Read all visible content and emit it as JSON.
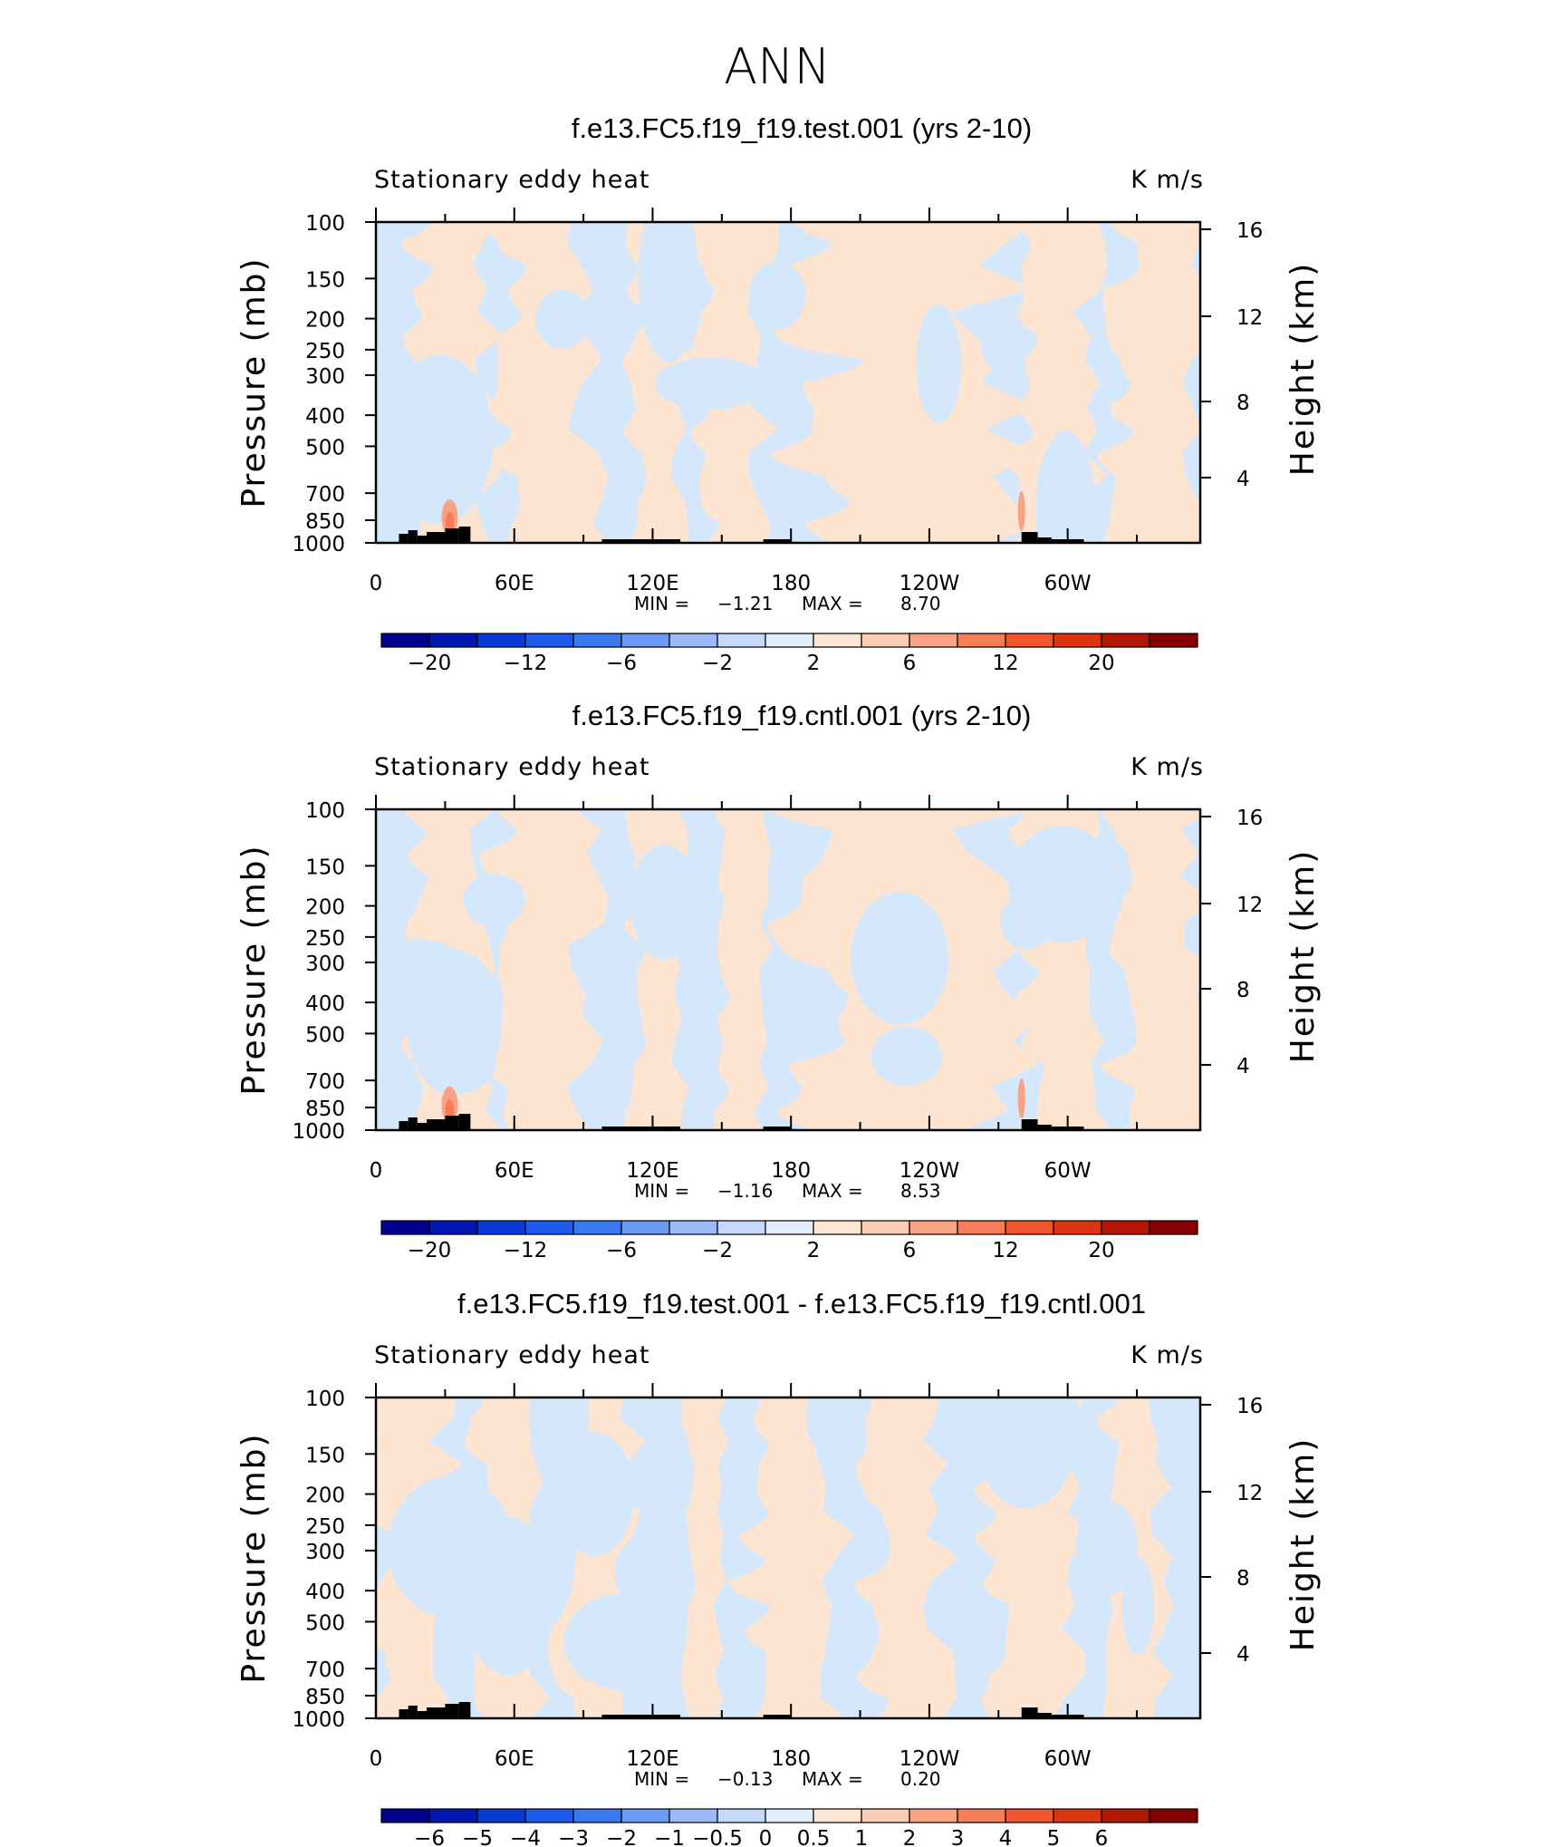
{
  "figure_title": "ANN",
  "colors": {
    "warm_fill": "#fde5d2",
    "cool_fill": "#d4e7fb",
    "topography": "#000000",
    "frame": "#000000"
  },
  "chart_data": [
    {
      "type": "heatmap",
      "title": "f.e13.FC5.f19_f19.test.001 (yrs 2-10)",
      "left_label": "Stationary eddy heat",
      "right_label": "K m/s",
      "ylabel": "Pressure (mb)",
      "y2label": "Height (km)",
      "yticks": [
        100,
        150,
        200,
        250,
        300,
        400,
        500,
        700,
        850,
        1000
      ],
      "y2ticks": [
        16,
        12,
        8,
        4
      ],
      "xticks": [
        {
          "lon": 0,
          "label": "0"
        },
        {
          "lon": 60,
          "label": "60E"
        },
        {
          "lon": 120,
          "label": "120E"
        },
        {
          "lon": 180,
          "label": "180"
        },
        {
          "lon": 240,
          "label": "120W"
        },
        {
          "lon": 300,
          "label": "60W"
        }
      ],
      "xlim": [
        0,
        357.5
      ],
      "ylim": [
        1000,
        100
      ],
      "min_label": "MIN =",
      "min_value": "−1.21",
      "max_label": "MAX =",
      "max_value": "8.70",
      "colorbar": {
        "colors": [
          "#00008c",
          "#0018b0",
          "#0a3ad6",
          "#1c5af0",
          "#3a78f2",
          "#6a9af5",
          "#9abaf8",
          "#c6d9fb",
          "#e3eefd",
          "#fde6d3",
          "#fbcdb2",
          "#f8a484",
          "#f67d55",
          "#f2552c",
          "#dd3511",
          "#b21705",
          "#850000"
        ],
        "labels": [
          "−20",
          "−12",
          "−6",
          "−2",
          "2",
          "6",
          "12",
          "20"
        ],
        "label_positions": [
          1,
          3,
          5,
          7,
          9,
          11,
          13,
          15
        ]
      },
      "field": {
        "description_levels": "sign of stationary eddy heat flux",
        "warm_bands_lon_deg": [
          [
            18,
            48
          ],
          [
            55,
            92
          ],
          [
            112,
            132
          ],
          [
            142,
            168
          ],
          [
            190,
            270
          ],
          [
            280,
            310
          ],
          [
            322,
            357
          ]
        ]
      }
    },
    {
      "type": "heatmap",
      "title": "f.e13.FC5.f19_f19.cntl.001 (yrs 2-10)",
      "left_label": "Stationary eddy heat",
      "right_label": "K m/s",
      "ylabel": "Pressure (mb)",
      "y2label": "Height (km)",
      "yticks": [
        100,
        150,
        200,
        250,
        300,
        400,
        500,
        700,
        850,
        1000
      ],
      "y2ticks": [
        16,
        12,
        8,
        4
      ],
      "xticks": [
        {
          "lon": 0,
          "label": "0"
        },
        {
          "lon": 60,
          "label": "60E"
        },
        {
          "lon": 120,
          "label": "120E"
        },
        {
          "lon": 180,
          "label": "180"
        },
        {
          "lon": 240,
          "label": "120W"
        },
        {
          "lon": 300,
          "label": "60W"
        }
      ],
      "xlim": [
        0,
        357.5
      ],
      "ylim": [
        1000,
        100
      ],
      "min_label": "MIN =",
      "min_value": "−1.16",
      "max_label": "MAX =",
      "max_value": "8.53",
      "colorbar": {
        "colors": [
          "#00008c",
          "#0018b0",
          "#0a3ad6",
          "#1c5af0",
          "#3a78f2",
          "#6a9af5",
          "#9abaf8",
          "#c6d9fb",
          "#e3eefd",
          "#fde6d3",
          "#fbcdb2",
          "#f8a484",
          "#f67d55",
          "#f2552c",
          "#dd3511",
          "#b21705",
          "#850000"
        ],
        "labels": [
          "−20",
          "−12",
          "−6",
          "−2",
          "2",
          "6",
          "12",
          "20"
        ],
        "label_positions": [
          1,
          3,
          5,
          7,
          9,
          11,
          13,
          15
        ]
      },
      "field": {
        "warm_bands_lon_deg": [
          [
            18,
            48
          ],
          [
            55,
            92
          ],
          [
            112,
            132
          ],
          [
            150,
            168
          ],
          [
            190,
            272
          ],
          [
            282,
            312
          ],
          [
            322,
            357
          ]
        ]
      }
    },
    {
      "type": "heatmap",
      "title": "f.e13.FC5.f19_f19.test.001 - f.e13.FC5.f19_f19.cntl.001",
      "left_label": "Stationary eddy heat",
      "right_label": "K m/s",
      "ylabel": "Pressure (mb)",
      "y2label": "Height (km)",
      "yticks": [
        100,
        150,
        200,
        250,
        300,
        400,
        500,
        700,
        850,
        1000
      ],
      "y2ticks": [
        16,
        12,
        8,
        4
      ],
      "xticks": [
        {
          "lon": 0,
          "label": "0"
        },
        {
          "lon": 60,
          "label": "60E"
        },
        {
          "lon": 120,
          "label": "120E"
        },
        {
          "lon": 180,
          "label": "180"
        },
        {
          "lon": 240,
          "label": "120W"
        },
        {
          "lon": 300,
          "label": "60W"
        }
      ],
      "xlim": [
        0,
        357.5
      ],
      "ylim": [
        1000,
        100
      ],
      "min_label": "MIN =",
      "min_value": "−0.13",
      "max_label": "MAX =",
      "max_value": "0.20",
      "colorbar": {
        "colors": [
          "#00008c",
          "#0018b0",
          "#0a3ad6",
          "#1c5af0",
          "#3a78f2",
          "#6a9af5",
          "#9abaf8",
          "#c6d9fb",
          "#e3eefd",
          "#fde6d3",
          "#fbcdb2",
          "#f8a484",
          "#f67d55",
          "#f2552c",
          "#dd3511",
          "#b21705",
          "#850000"
        ],
        "labels": [
          "−6",
          "−5",
          "−4",
          "−3",
          "−2",
          "−1",
          "−0.5",
          "0",
          "0.5",
          "1",
          "2",
          "3",
          "4",
          "5",
          "6"
        ],
        "label_positions": [
          1,
          2,
          3,
          4,
          5,
          6,
          7,
          8,
          9,
          10,
          11,
          12,
          13,
          14,
          15
        ]
      },
      "field": {
        "warm_bands_lon_deg": [
          [
            0,
            30
          ],
          [
            45,
            70
          ],
          [
            82,
            110
          ],
          [
            135,
            150
          ],
          [
            160,
            200
          ],
          [
            215,
            245
          ],
          [
            268,
            300
          ],
          [
            318,
            340
          ]
        ]
      }
    }
  ]
}
